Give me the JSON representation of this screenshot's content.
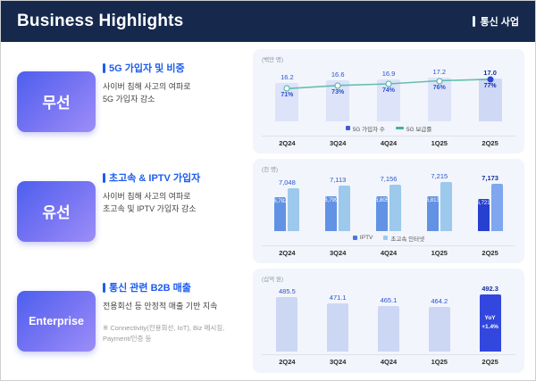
{
  "header": {
    "title": "Business Highlights",
    "tag_label": "통신 사업"
  },
  "rows": [
    {
      "badge": "무선",
      "title": "5G 가입자 및 비중",
      "desc": "사이버 침해 사고의 여파로\n5G 가입자 감소"
    },
    {
      "badge": "유선",
      "title": "초고속 & IPTV 가입자",
      "desc": "사이버 침해 사고의 여파로\n초고속 및 IPTV 가입자 감소"
    },
    {
      "badge": "Enterprise",
      "title": "통신 관련 B2B 매출",
      "desc": "전용회선 등 안정적 매출 기반 지속",
      "footnote": "※ Connectivity(전용회선, IoT), Biz 메시징,\nPayment/인증 등"
    }
  ],
  "chart_data": [
    {
      "type": "bar+line",
      "title": "5G 가입자 및 비중",
      "unit": "(백만 명)",
      "categories": [
        "2Q24",
        "3Q24",
        "4Q24",
        "1Q25",
        "2Q25"
      ],
      "series": [
        {
          "name": "5G 가입자 수",
          "type": "bar",
          "values": [
            16.2,
            16.6,
            16.9,
            17.2,
            17.0
          ]
        },
        {
          "name": "5G 보급률",
          "type": "line",
          "values": [
            71,
            73,
            74,
            76,
            77
          ],
          "value_suffix": "%"
        }
      ],
      "legend": [
        {
          "label": "5G 가입자 수",
          "marker": "square",
          "color": "#3b5ce0"
        },
        {
          "label": "5G 보급률",
          "marker": "line",
          "color": "#43b0a0"
        }
      ],
      "legend_position": "bottom",
      "grid": false
    },
    {
      "type": "bar",
      "title": "초고속 & IPTV 가입자",
      "unit": "(천 명)",
      "categories": [
        "2Q24",
        "3Q24",
        "4Q24",
        "1Q25",
        "2Q25"
      ],
      "series": [
        {
          "name": "IPTV",
          "values": [
            6782,
            6799,
            6805,
            6813,
            6721
          ]
        },
        {
          "name": "초고속 인터넷",
          "values": [
            7048,
            7113,
            7156,
            7215,
            7173
          ]
        }
      ],
      "legend": [
        {
          "label": "IPTV",
          "marker": "square",
          "color": "#4a78e0"
        },
        {
          "label": "초고속 인터넷",
          "marker": "square",
          "color": "#9cc9ec"
        }
      ],
      "legend_position": "bottom",
      "grid": false
    },
    {
      "type": "bar",
      "title": "통신 관련 B2B 매출",
      "unit": "(십억 원)",
      "categories": [
        "2Q24",
        "3Q24",
        "4Q24",
        "1Q25",
        "2Q25"
      ],
      "values": [
        485.5,
        471.1,
        465.1,
        464.2,
        492.3
      ],
      "highlight_index": 4,
      "highlight_label": "YoY\n+1.4%",
      "grid": false
    }
  ],
  "colors": {
    "header_navy": "#16294d",
    "accent_blue": "#1d5cf0",
    "badge_gradient_start": "#4d5fee",
    "badge_gradient_end": "#9c8ef8",
    "bar_light": "#dde3f8",
    "bar_highlight": "#3347de",
    "line_teal": "#43b0a0",
    "panel_bg": "#f2f5fb"
  }
}
